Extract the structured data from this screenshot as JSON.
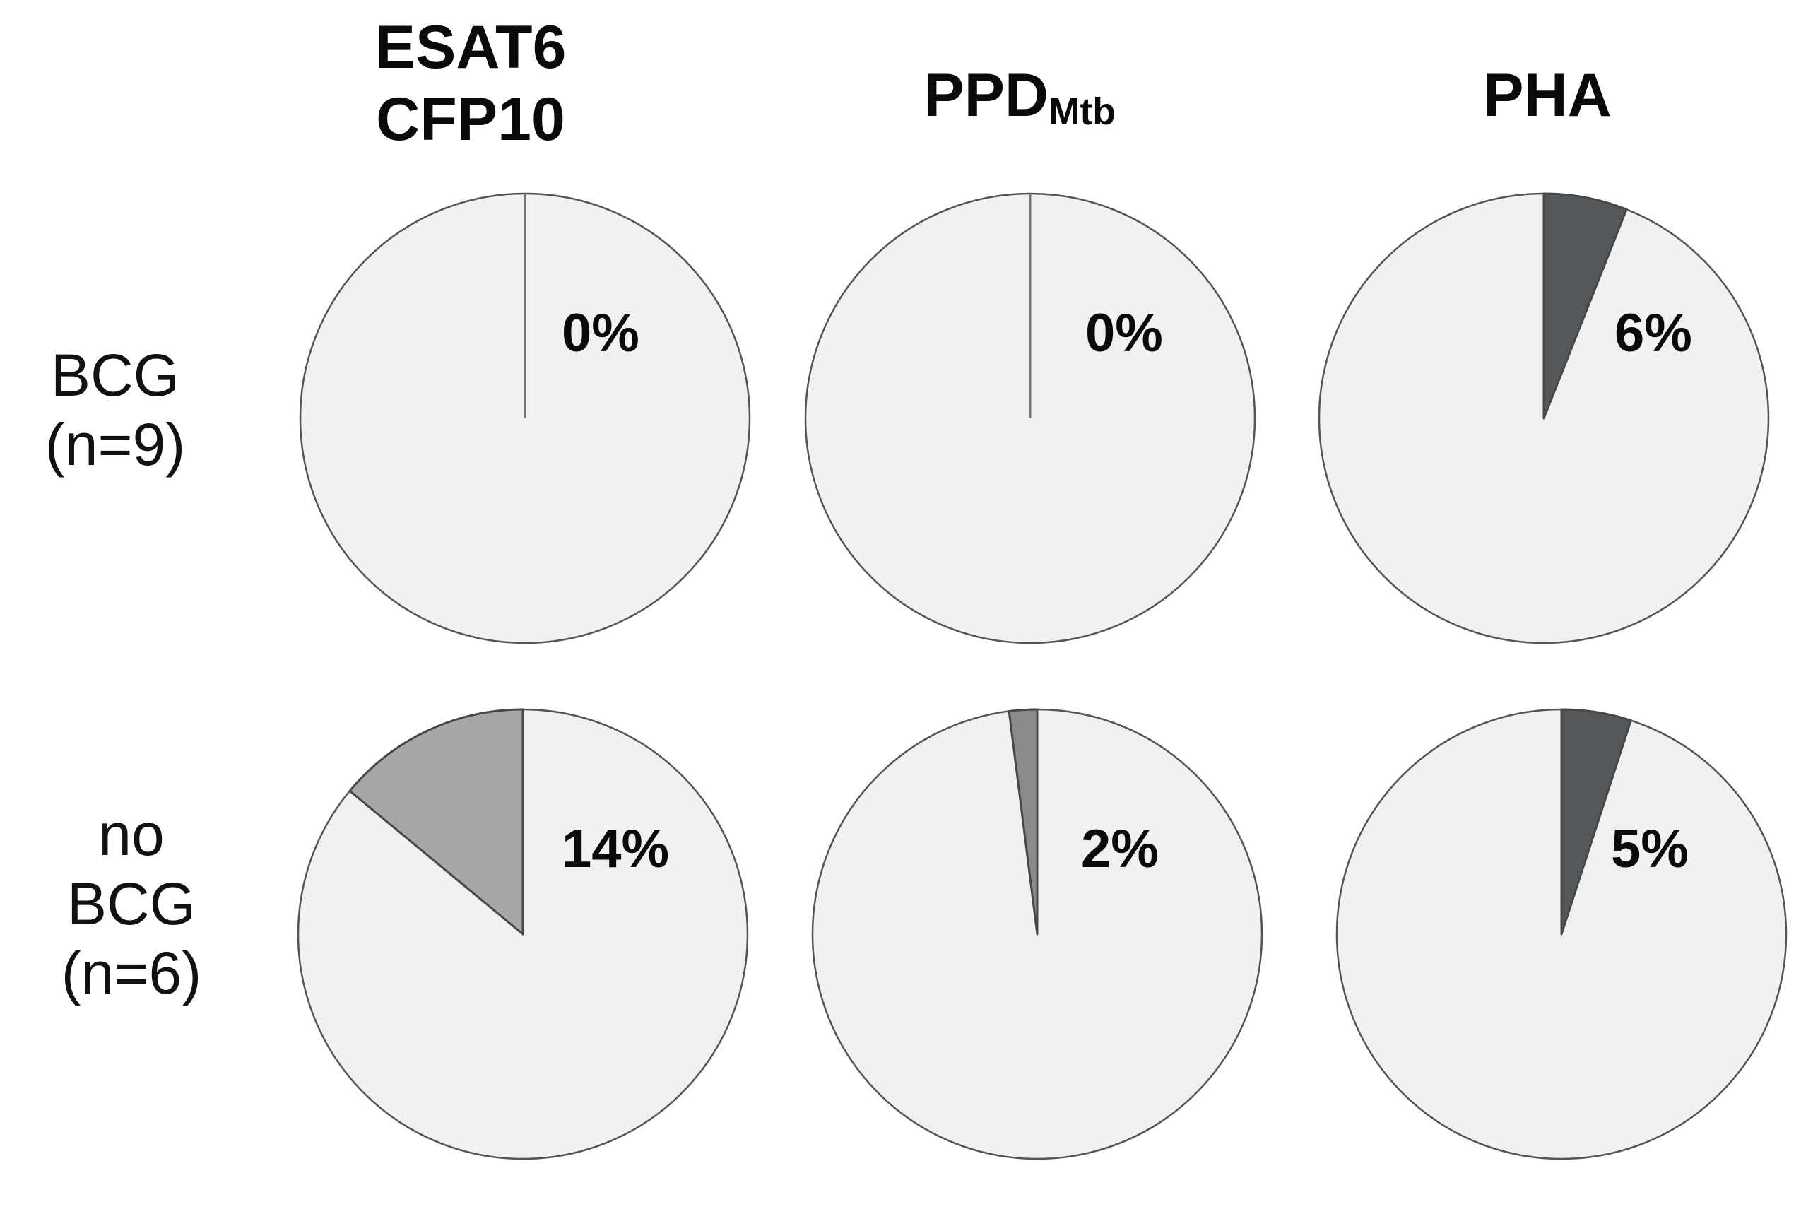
{
  "titles": {
    "col1_line1": "ESAT6",
    "col1_line2": "CFP10",
    "col2_base": "PPD",
    "col2_sub": "Mtb",
    "col3": "PHA"
  },
  "row_labels": {
    "r1_line1": "BCG",
    "r1_line2": "(n=9)",
    "r2_line1": "no",
    "r2_line2": "BCG",
    "r2_line3": "(n=6)"
  },
  "chart_data": {
    "type": "pie",
    "layout": "2 rows x 3 columns of single-slice pie charts",
    "columns": [
      "ESAT6 CFP10",
      "PPD Mtb",
      "PHA"
    ],
    "rows": [
      "BCG (n=9)",
      "no BCG (n=6)"
    ],
    "pies": [
      {
        "row": "BCG (n=9)",
        "column": "ESAT6 CFP10",
        "value_pct": 0,
        "label": "0%",
        "direction": "cw",
        "slice_color": "#757575"
      },
      {
        "row": "BCG (n=9)",
        "column": "PPD Mtb",
        "value_pct": 0,
        "label": "0%",
        "direction": "cw",
        "slice_color": "#757575"
      },
      {
        "row": "BCG (n=9)",
        "column": "PHA",
        "value_pct": 6,
        "label": "6%",
        "direction": "cw",
        "slice_color": "#55585a"
      },
      {
        "row": "no BCG (n=6)",
        "column": "ESAT6 CFP10",
        "value_pct": 14,
        "label": "14%",
        "direction": "ccw",
        "slice_color": "#a7a7a7"
      },
      {
        "row": "no BCG (n=6)",
        "column": "PPD Mtb",
        "value_pct": 2,
        "label": "2%",
        "direction": "ccw",
        "slice_color": "#8a8a8a"
      },
      {
        "row": "no BCG (n=6)",
        "column": "PHA",
        "value_pct": 5,
        "label": "5%",
        "direction": "cw",
        "slice_color": "#55585a"
      }
    ],
    "colors": {
      "pie_fill": "#f1f1f1",
      "outline": "#545454",
      "slice_outline": "#474747",
      "zero_line": "#757575"
    }
  }
}
